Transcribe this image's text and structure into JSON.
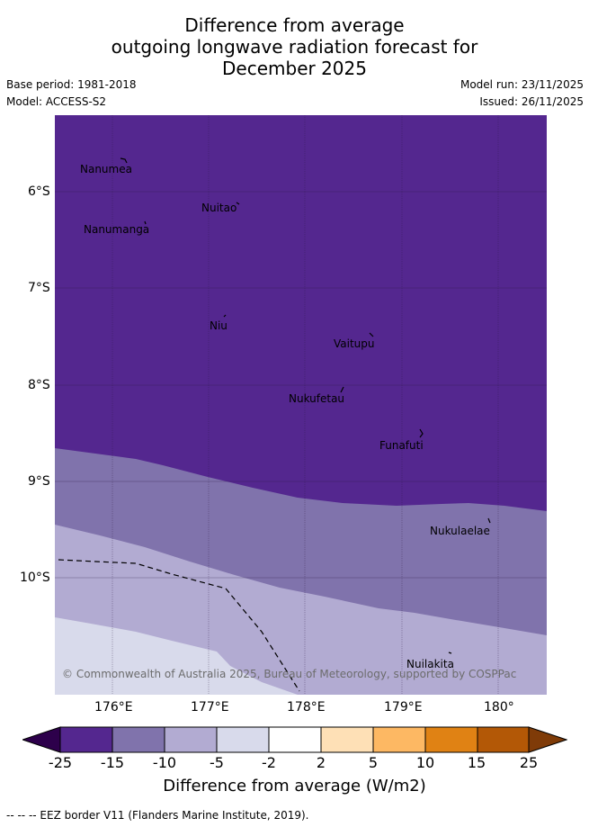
{
  "title": {
    "line1": "Difference from average",
    "line2": "outgoing longwave radiation forecast for",
    "line3": "December 2025"
  },
  "meta": {
    "base_period": "Base period: 1981-2018",
    "model": "Model: ACCESS-S2",
    "model_run": "Model run: 23/11/2025",
    "issued": "Issued: 26/11/2025"
  },
  "map": {
    "lat_labels": [
      "6°S",
      "7°S",
      "8°S",
      "9°S",
      "10°S"
    ],
    "lon_labels": [
      "176°E",
      "177°E",
      "178°E",
      "179°E",
      "180°"
    ],
    "islands": [
      "Nanumea",
      "Nuitao",
      "Nanumanga",
      "Niu",
      "Vaitupu",
      "Nukufetau",
      "Funafuti",
      "Nukulaelae",
      "Nuilakita"
    ],
    "copyright": "© Commonwealth of Australia 2025, Bureau of Meteorology, supported by COSPPac",
    "colors": {
      "band_lt_minus15": "#54278f",
      "band_minus15_minus10": "#8073ac",
      "band_minus10_minus5": "#b2abd2",
      "band_minus5_minus2": "#d8daeb"
    }
  },
  "colorbar": {
    "labels": [
      "-25",
      "-15",
      "-10",
      "-5",
      "-2",
      "2",
      "5",
      "10",
      "15",
      "25"
    ],
    "colors": [
      "#2d004b",
      "#54278f",
      "#8073ac",
      "#b2abd2",
      "#d8daeb",
      "#ffffff",
      "#fee0b6",
      "#fdb863",
      "#e08214",
      "#b35806",
      "#7f3b08"
    ],
    "title": "Difference from average (W/m2)"
  },
  "footer": "--  --  -- EEZ border V11 (Flanders Marine Institute, 2019)."
}
